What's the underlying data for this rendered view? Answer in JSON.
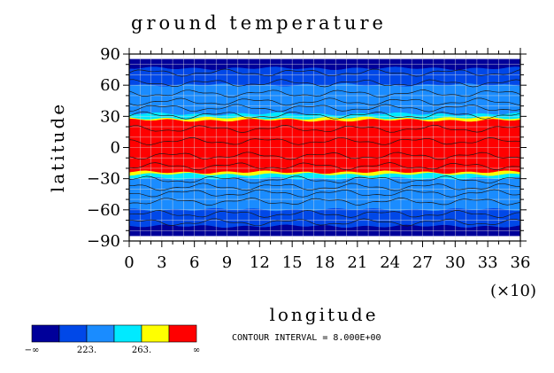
{
  "chart_data": {
    "type": "heatmap",
    "title": "ground temperature",
    "xlabel": "longitude",
    "ylabel": "latitude",
    "x_multiplier": "(×10)",
    "xlim": [
      0,
      36
    ],
    "ylim": [
      -90,
      90
    ],
    "xticks": [
      "0",
      "3",
      "6",
      "9",
      "12",
      "15",
      "18",
      "21",
      "24",
      "27",
      "30",
      "33",
      "36"
    ],
    "yticks": [
      "90",
      "60",
      "30",
      "0",
      "−30",
      "−60",
      "−90"
    ],
    "contour_interval_text": "CONTOUR INTERVAL = 8.000E+00",
    "colorbar": {
      "colors": [
        "#00009a",
        "#0048e8",
        "#1a8cff",
        "#00eaff",
        "#ffff00",
        "#ff0000"
      ],
      "labels": [
        "−∞",
        "223.",
        "263.",
        "∞"
      ]
    },
    "latitude_bands": [
      {
        "lat_min": 76,
        "lat_max": 85,
        "level": 0
      },
      {
        "lat_min": 60,
        "lat_max": 76,
        "level": 1
      },
      {
        "lat_min": 32,
        "lat_max": 60,
        "level": 2
      },
      {
        "lat_min": 28,
        "lat_max": 32,
        "level": 3
      },
      {
        "lat_min": 26,
        "lat_max": 28,
        "level": 4
      },
      {
        "lat_min": -24,
        "lat_max": 26,
        "level": 5
      },
      {
        "lat_min": -26,
        "lat_max": -24,
        "level": 4
      },
      {
        "lat_min": -30,
        "lat_max": -26,
        "level": 3
      },
      {
        "lat_min": -60,
        "lat_max": -30,
        "level": 2
      },
      {
        "lat_min": -76,
        "lat_max": -60,
        "level": 1
      },
      {
        "lat_min": -85,
        "lat_max": -76,
        "level": 0
      }
    ]
  },
  "colors": {
    "grid": "#d8d8d8",
    "contour": "#1a1a1a",
    "axis": "#000000"
  }
}
